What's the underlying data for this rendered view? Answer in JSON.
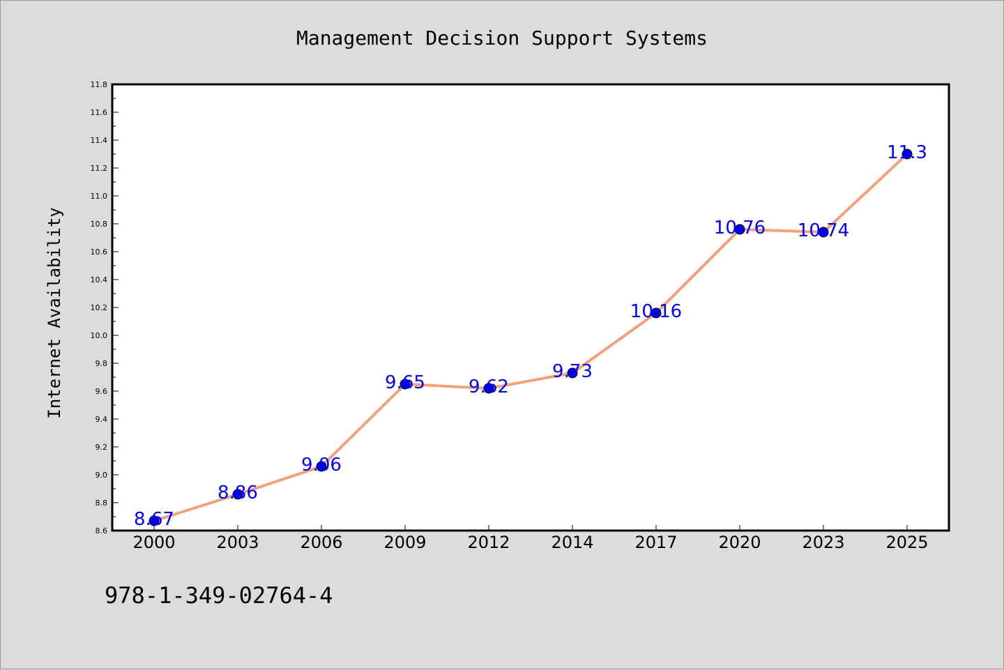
{
  "page": {
    "background": "#dcdcdc",
    "isbn": "978-1-349-02764-4"
  },
  "chart_data": {
    "type": "line",
    "title": "Management Decision Support Systems",
    "xlabel": "",
    "ylabel": "Internet Availability",
    "categories": [
      "2000",
      "2003",
      "2006",
      "2009",
      "2012",
      "2014",
      "2017",
      "2020",
      "2023",
      "2025"
    ],
    "series": [
      {
        "values": [
          8.67,
          8.86,
          9.06,
          9.65,
          9.62,
          9.73,
          10.16,
          10.76,
          10.74,
          11.3
        ],
        "labels": [
          "8.67",
          "8.86",
          "9.06",
          "9.65",
          "9.62",
          "9.73",
          "10.16",
          "10.76",
          "10.74",
          "11.3"
        ],
        "line_color": "#f4a07a",
        "marker_color": "#0000ee",
        "label_color": "#0000ff"
      }
    ],
    "ylim": [
      8.6,
      11.8
    ],
    "yticks": [
      "8.6",
      "8.8",
      "9.0",
      "9.2",
      "9.4",
      "9.6",
      "9.8",
      "10.0",
      "10.2",
      "10.4",
      "10.6",
      "10.8",
      "11.0",
      "11.2",
      "11.4",
      "11.6",
      "11.8"
    ],
    "grid": false,
    "legend": "none",
    "plot_background": "#ffffff"
  }
}
